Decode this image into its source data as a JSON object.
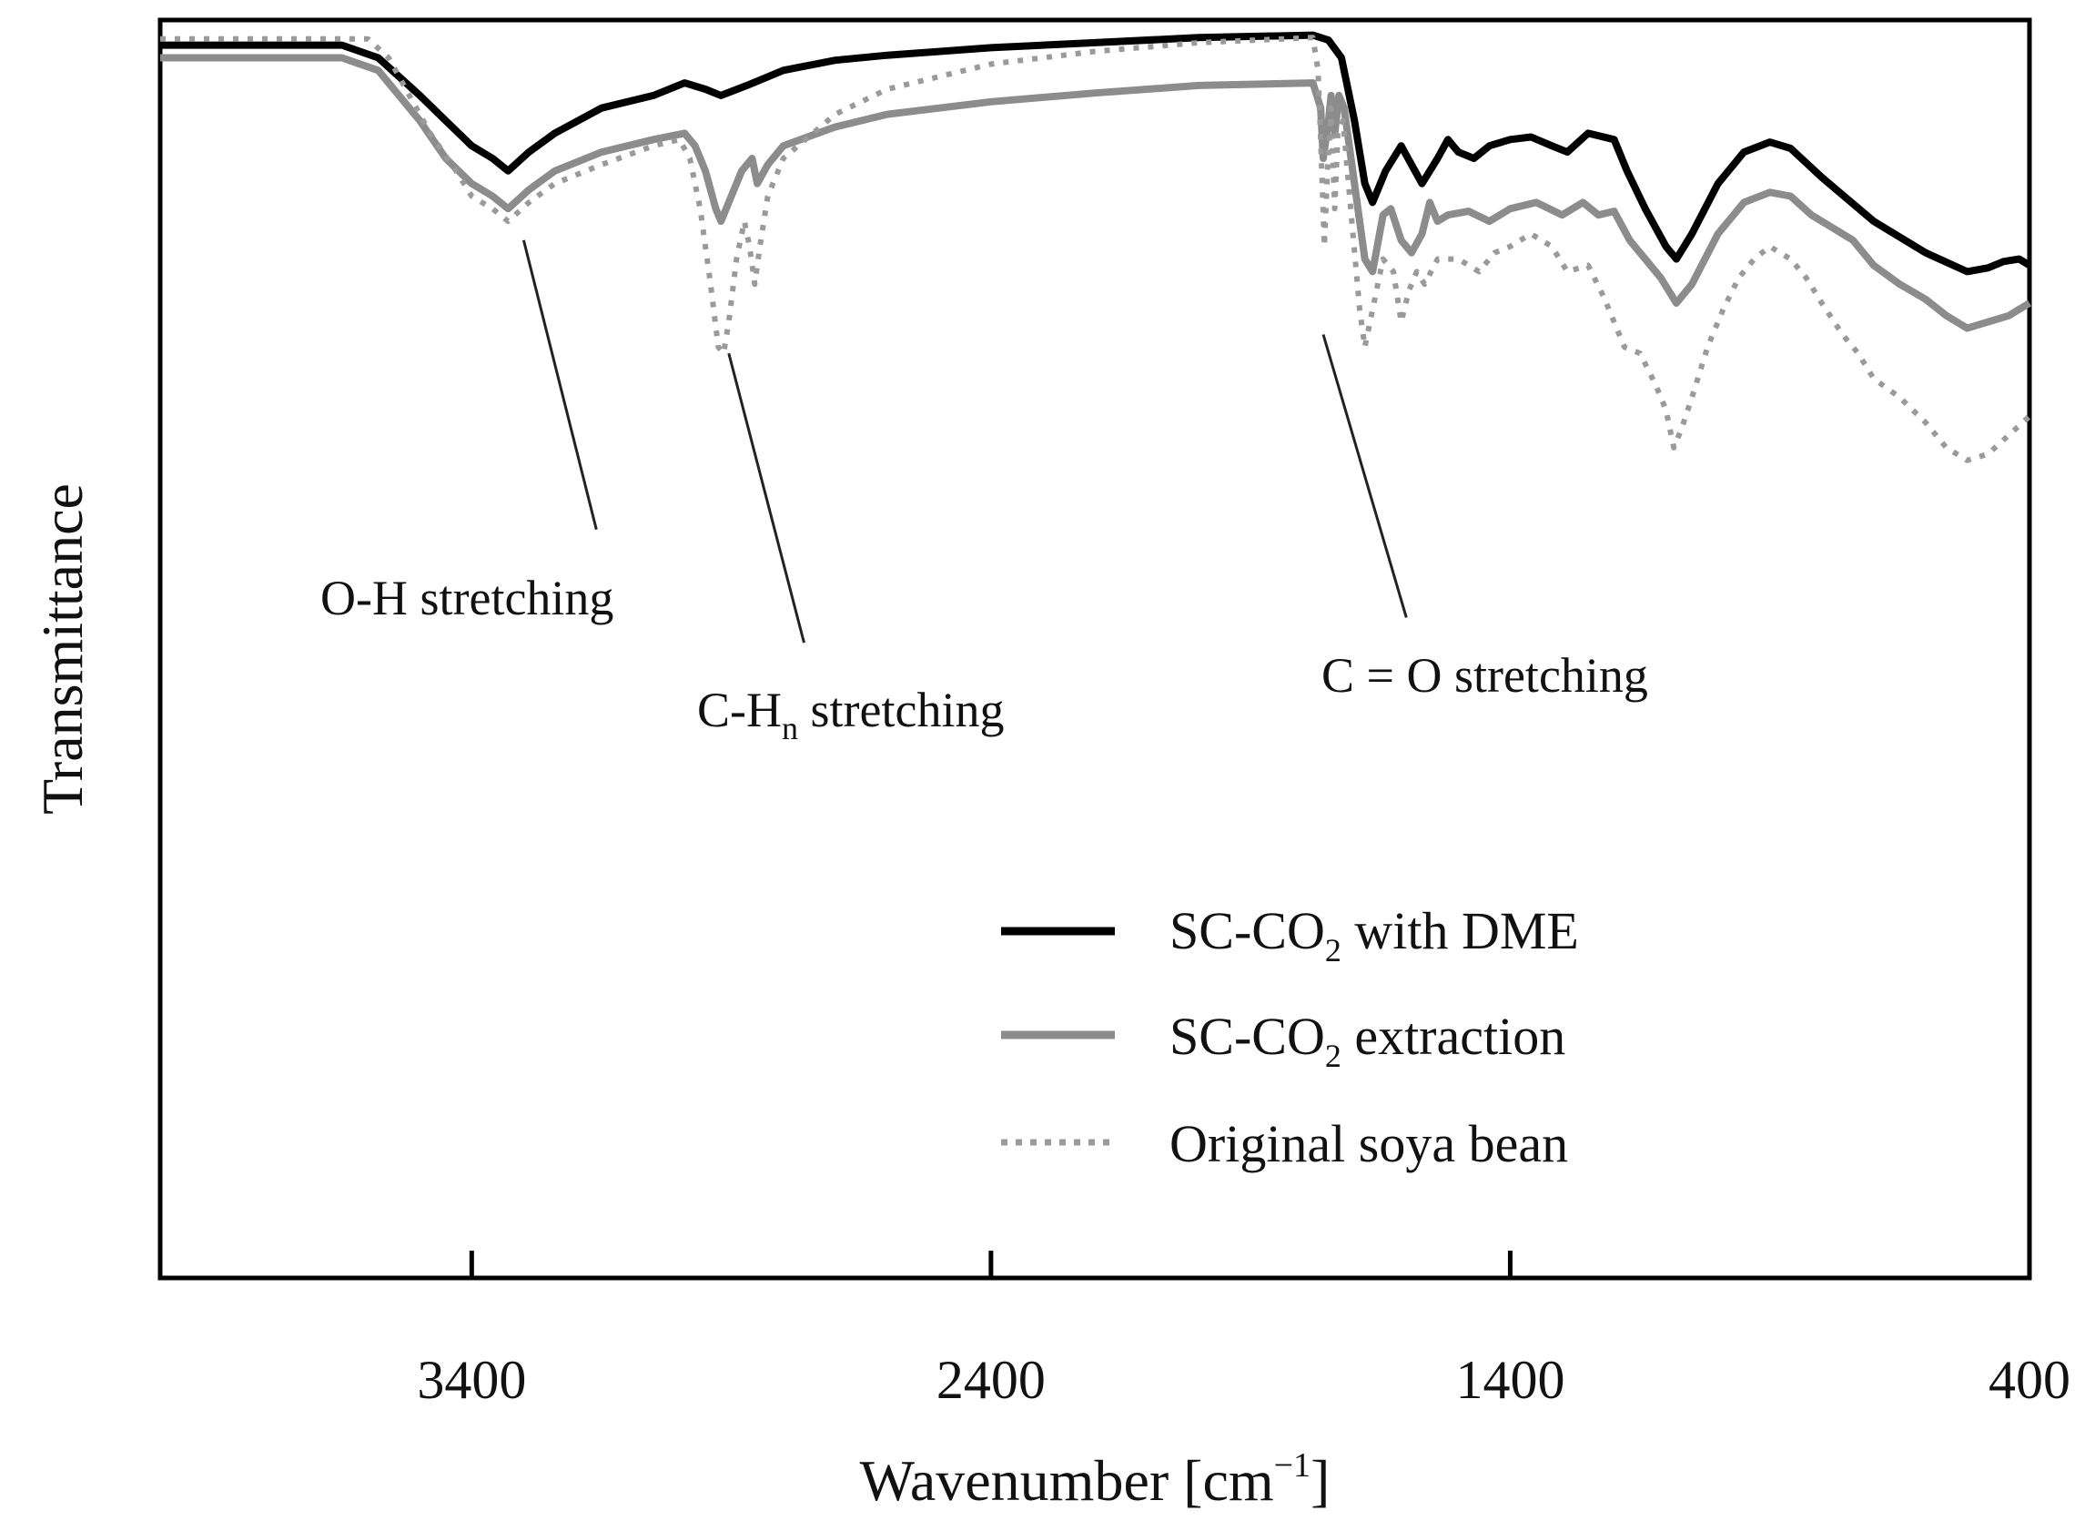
{
  "chart_data": {
    "type": "line",
    "title": "",
    "xlabel": "Wavenumber [cm⁻¹]",
    "xlabel_main": "Wavenumber [cm",
    "xlabel_sup": "−1",
    "xlabel_end": "]",
    "ylabel": "Transmittance",
    "xlim": [
      4000,
      400
    ],
    "ylim": [
      0,
      100
    ],
    "x_reversed": true,
    "grid": false,
    "legend_position": "bottom-right",
    "xticks": [
      3400,
      2400,
      1400,
      400
    ],
    "xtick_labels": [
      "3400",
      "2400",
      "1400",
      "400"
    ],
    "series": [
      {
        "name": "SC-CO2 with DME",
        "legend_main": "SC-CO",
        "legend_sub": "2",
        "legend_rest": " with DME",
        "color": "#000000",
        "style": "solid",
        "points": [
          [
            4000,
            98
          ],
          [
            3650,
            98
          ],
          [
            3580,
            97
          ],
          [
            3500,
            94
          ],
          [
            3450,
            92
          ],
          [
            3400,
            90
          ],
          [
            3360,
            89
          ],
          [
            3330,
            88
          ],
          [
            3290,
            89.5
          ],
          [
            3240,
            91
          ],
          [
            3150,
            93
          ],
          [
            3050,
            94
          ],
          [
            2990,
            95
          ],
          [
            2950,
            94.5
          ],
          [
            2920,
            94
          ],
          [
            2870,
            94.8
          ],
          [
            2800,
            96
          ],
          [
            2700,
            96.8
          ],
          [
            2600,
            97.2
          ],
          [
            2400,
            97.8
          ],
          [
            2200,
            98.2
          ],
          [
            2000,
            98.6
          ],
          [
            1780,
            98.8
          ],
          [
            1750,
            98.4
          ],
          [
            1725,
            97
          ],
          [
            1700,
            92
          ],
          [
            1680,
            87
          ],
          [
            1665,
            85.5
          ],
          [
            1640,
            88
          ],
          [
            1610,
            90
          ],
          [
            1590,
            88.5
          ],
          [
            1570,
            87
          ],
          [
            1540,
            89
          ],
          [
            1520,
            90.5
          ],
          [
            1500,
            89.5
          ],
          [
            1470,
            89
          ],
          [
            1440,
            90
          ],
          [
            1400,
            90.5
          ],
          [
            1360,
            90.7
          ],
          [
            1320,
            90
          ],
          [
            1290,
            89.5
          ],
          [
            1250,
            91
          ],
          [
            1200,
            90.5
          ],
          [
            1175,
            88
          ],
          [
            1140,
            85
          ],
          [
            1100,
            82
          ],
          [
            1080,
            81
          ],
          [
            1050,
            83
          ],
          [
            1000,
            87
          ],
          [
            950,
            89.5
          ],
          [
            900,
            90.3
          ],
          [
            860,
            89.8
          ],
          [
            800,
            87.5
          ],
          [
            700,
            84
          ],
          [
            600,
            81.5
          ],
          [
            520,
            80
          ],
          [
            480,
            80.3
          ],
          [
            450,
            80.8
          ],
          [
            420,
            81
          ],
          [
            400,
            80.5
          ]
        ]
      },
      {
        "name": "SC-CO2 extraction",
        "legend_main": "SC-CO",
        "legend_sub": "2",
        "legend_rest": " extraction",
        "color": "#8c8c8c",
        "style": "solid",
        "points": [
          [
            4000,
            97
          ],
          [
            3650,
            97
          ],
          [
            3580,
            96
          ],
          [
            3500,
            92
          ],
          [
            3450,
            89
          ],
          [
            3400,
            87
          ],
          [
            3360,
            86
          ],
          [
            3330,
            85
          ],
          [
            3290,
            86.5
          ],
          [
            3240,
            88
          ],
          [
            3150,
            89.5
          ],
          [
            3050,
            90.5
          ],
          [
            2990,
            91
          ],
          [
            2970,
            90
          ],
          [
            2950,
            88
          ],
          [
            2930,
            85
          ],
          [
            2920,
            84
          ],
          [
            2900,
            86
          ],
          [
            2880,
            88
          ],
          [
            2860,
            89
          ],
          [
            2850,
            87
          ],
          [
            2830,
            88.5
          ],
          [
            2800,
            90
          ],
          [
            2700,
            91.5
          ],
          [
            2600,
            92.5
          ],
          [
            2400,
            93.5
          ],
          [
            2200,
            94.2
          ],
          [
            2000,
            94.8
          ],
          [
            1780,
            95
          ],
          [
            1765,
            93
          ],
          [
            1760,
            89
          ],
          [
            1750,
            92
          ],
          [
            1745,
            94
          ],
          [
            1738,
            91
          ],
          [
            1730,
            94
          ],
          [
            1720,
            93
          ],
          [
            1700,
            87
          ],
          [
            1680,
            81
          ],
          [
            1665,
            80
          ],
          [
            1645,
            84.5
          ],
          [
            1630,
            85
          ],
          [
            1610,
            82.5
          ],
          [
            1590,
            81.5
          ],
          [
            1570,
            83
          ],
          [
            1555,
            85.5
          ],
          [
            1540,
            84
          ],
          [
            1520,
            84.5
          ],
          [
            1480,
            84.8
          ],
          [
            1440,
            84
          ],
          [
            1400,
            85
          ],
          [
            1350,
            85.5
          ],
          [
            1300,
            84.5
          ],
          [
            1260,
            85.5
          ],
          [
            1230,
            84.5
          ],
          [
            1200,
            84.8
          ],
          [
            1170,
            82.5
          ],
          [
            1140,
            81
          ],
          [
            1110,
            79.5
          ],
          [
            1080,
            77.5
          ],
          [
            1050,
            79
          ],
          [
            1000,
            83
          ],
          [
            950,
            85.5
          ],
          [
            900,
            86.3
          ],
          [
            860,
            86
          ],
          [
            820,
            84.5
          ],
          [
            780,
            83.5
          ],
          [
            740,
            82.5
          ],
          [
            700,
            80.5
          ],
          [
            650,
            79
          ],
          [
            600,
            77.8
          ],
          [
            560,
            76.5
          ],
          [
            520,
            75.5
          ],
          [
            480,
            76
          ],
          [
            440,
            76.5
          ],
          [
            400,
            77.5
          ]
        ]
      },
      {
        "name": "Original soya bean",
        "legend_main": "Original soya bean",
        "legend_sub": "",
        "legend_rest": "",
        "color": "#9a9a9a",
        "style": "dotted",
        "points": [
          [
            4000,
            98.5
          ],
          [
            3600,
            98.5
          ],
          [
            3560,
            97
          ],
          [
            3480,
            91
          ],
          [
            3430,
            88
          ],
          [
            3400,
            86
          ],
          [
            3360,
            85
          ],
          [
            3330,
            84
          ],
          [
            3290,
            85.5
          ],
          [
            3240,
            87
          ],
          [
            3150,
            88.5
          ],
          [
            3050,
            90
          ],
          [
            3000,
            90.5
          ],
          [
            2980,
            89
          ],
          [
            2960,
            85
          ],
          [
            2940,
            79
          ],
          [
            2925,
            74
          ],
          [
            2915,
            73.5
          ],
          [
            2905,
            76
          ],
          [
            2890,
            81
          ],
          [
            2875,
            84
          ],
          [
            2865,
            82
          ],
          [
            2855,
            79
          ],
          [
            2845,
            82
          ],
          [
            2830,
            86
          ],
          [
            2800,
            89
          ],
          [
            2700,
            92.5
          ],
          [
            2600,
            94.5
          ],
          [
            2400,
            96.5
          ],
          [
            2200,
            97.5
          ],
          [
            2000,
            98.2
          ],
          [
            1780,
            98.6
          ],
          [
            1770,
            96
          ],
          [
            1762,
            87
          ],
          [
            1758,
            82
          ],
          [
            1752,
            88
          ],
          [
            1745,
            93
          ],
          [
            1738,
            85
          ],
          [
            1732,
            91
          ],
          [
            1722,
            92
          ],
          [
            1705,
            84
          ],
          [
            1690,
            77
          ],
          [
            1680,
            74
          ],
          [
            1670,
            76
          ],
          [
            1660,
            78
          ],
          [
            1645,
            81
          ],
          [
            1625,
            80
          ],
          [
            1610,
            76
          ],
          [
            1595,
            78.5
          ],
          [
            1580,
            80
          ],
          [
            1565,
            79
          ],
          [
            1540,
            81
          ],
          [
            1500,
            81
          ],
          [
            1460,
            80
          ],
          [
            1430,
            81.5
          ],
          [
            1400,
            82
          ],
          [
            1360,
            83
          ],
          [
            1320,
            82
          ],
          [
            1290,
            80
          ],
          [
            1250,
            80.5
          ],
          [
            1220,
            78
          ],
          [
            1200,
            76
          ],
          [
            1180,
            74
          ],
          [
            1150,
            73.5
          ],
          [
            1120,
            71
          ],
          [
            1100,
            69
          ],
          [
            1085,
            66
          ],
          [
            1070,
            67.5
          ],
          [
            1050,
            70
          ],
          [
            1020,
            74
          ],
          [
            990,
            77
          ],
          [
            960,
            79.5
          ],
          [
            930,
            81
          ],
          [
            900,
            82
          ],
          [
            860,
            81
          ],
          [
            830,
            79.5
          ],
          [
            800,
            77.5
          ],
          [
            760,
            75
          ],
          [
            730,
            73.5
          ],
          [
            700,
            71.5
          ],
          [
            650,
            70
          ],
          [
            600,
            68
          ],
          [
            560,
            66
          ],
          [
            520,
            65
          ],
          [
            480,
            65.5
          ],
          [
            440,
            67
          ],
          [
            400,
            68.5
          ]
        ]
      }
    ],
    "annotations": [
      {
        "id": "oh",
        "text": "O-H stretching",
        "main": "O-H stretching",
        "sub": "",
        "rest": "",
        "line_from": [
          3300,
          82.5
        ],
        "line_to": [
          3160,
          59.5
        ]
      },
      {
        "id": "ch",
        "text": "C-Hn stretching",
        "main": "C-H",
        "sub": "n",
        "rest": " stretching",
        "line_from": [
          2905,
          73.5
        ],
        "line_to": [
          2760,
          50.5
        ]
      },
      {
        "id": "co",
        "text": "C = O stretching",
        "main": "C = O stretching",
        "sub": "",
        "rest": "",
        "line_from": [
          1760,
          75
        ],
        "line_to": [
          1600,
          52.5
        ]
      }
    ]
  }
}
